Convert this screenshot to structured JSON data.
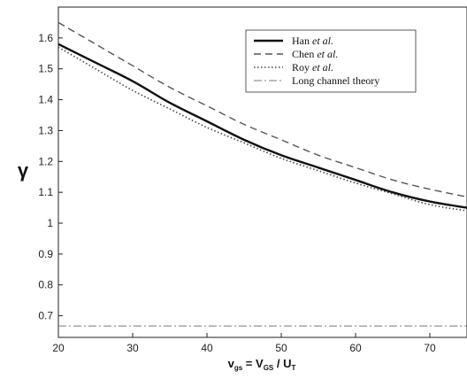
{
  "chart_data": {
    "type": "line",
    "title": "",
    "ylabel": "γ",
    "xlabel": {
      "main": "v",
      "main_sub": "gs",
      "eq": " = V",
      "eq_sub": "GS",
      "div": " / U",
      "div_sub": "T"
    },
    "xlim": [
      20,
      75
    ],
    "ylim": [
      0.63,
      1.7
    ],
    "x_ticks": [
      "20",
      "30",
      "40",
      "50",
      "60",
      "70"
    ],
    "y_ticks": [
      "0.7",
      "0.8",
      "0.9",
      "1",
      "1.1",
      "1.2",
      "1.3",
      "1.4",
      "1.5",
      "1.6"
    ],
    "legend_position": "top-right",
    "series": [
      {
        "name": "Han",
        "name_suffix": " et al.",
        "style": "solid",
        "x": [
          20,
          25,
          30,
          35,
          40,
          45,
          50,
          55,
          60,
          65,
          70,
          75
        ],
        "y": [
          1.58,
          1.52,
          1.46,
          1.39,
          1.33,
          1.27,
          1.22,
          1.18,
          1.14,
          1.1,
          1.07,
          1.05
        ]
      },
      {
        "name": "Chen",
        "name_suffix": " et al.",
        "style": "dashed",
        "x": [
          20,
          25,
          30,
          35,
          40,
          45,
          50,
          55,
          60,
          65,
          70,
          75
        ],
        "y": [
          1.65,
          1.58,
          1.51,
          1.44,
          1.38,
          1.32,
          1.27,
          1.22,
          1.18,
          1.14,
          1.11,
          1.085
        ]
      },
      {
        "name": "Roy",
        "name_suffix": " et al.",
        "style": "dotted",
        "x": [
          20,
          25,
          30,
          35,
          40,
          45,
          50,
          55,
          60,
          65,
          70,
          75
        ],
        "y": [
          1.57,
          1.5,
          1.43,
          1.37,
          1.31,
          1.26,
          1.21,
          1.17,
          1.13,
          1.095,
          1.06,
          1.04
        ]
      },
      {
        "name": "Long channel theory",
        "name_suffix": "",
        "style": "dashdot",
        "x": [
          20,
          75
        ],
        "y": [
          0.667,
          0.667
        ]
      }
    ]
  }
}
